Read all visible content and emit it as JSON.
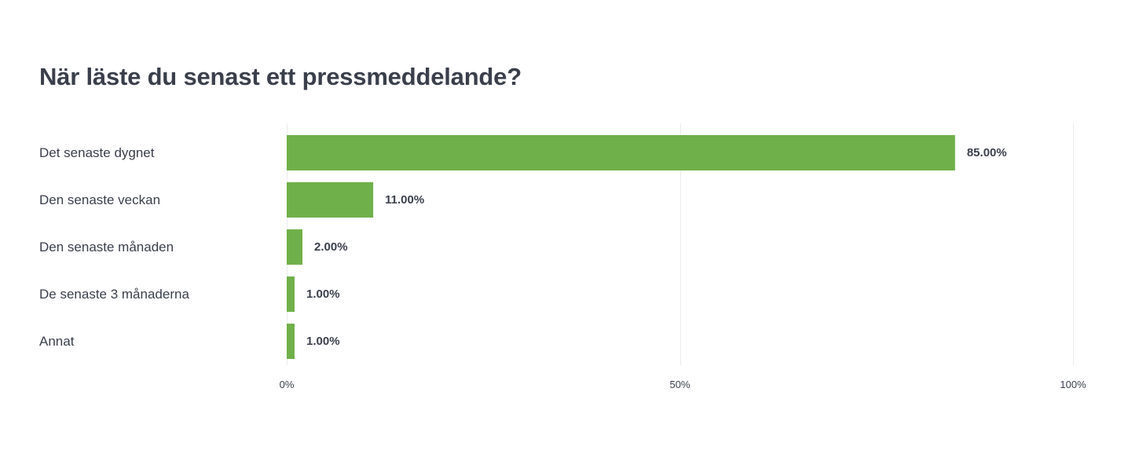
{
  "chart_data": {
    "type": "bar",
    "orientation": "horizontal",
    "title": "När läste du senast ett pressmeddelande?",
    "categories": [
      "Det senaste dygnet",
      "Den senaste veckan",
      "Den senaste månaden",
      "De senaste 3 månaderna",
      "Annat"
    ],
    "values": [
      85,
      11,
      2,
      1,
      1
    ],
    "value_labels": [
      "85.00%",
      "11.00%",
      "2.00%",
      "1.00%",
      "1.00%"
    ],
    "xticks": [
      0,
      50,
      100
    ],
    "xtick_labels": [
      "0%",
      "50%",
      "100%"
    ],
    "xlim": [
      0,
      100
    ],
    "grid": true,
    "bar_color": "#70b04a",
    "text_color": "#3a3f4b",
    "grid_color": "#ebebeb"
  }
}
